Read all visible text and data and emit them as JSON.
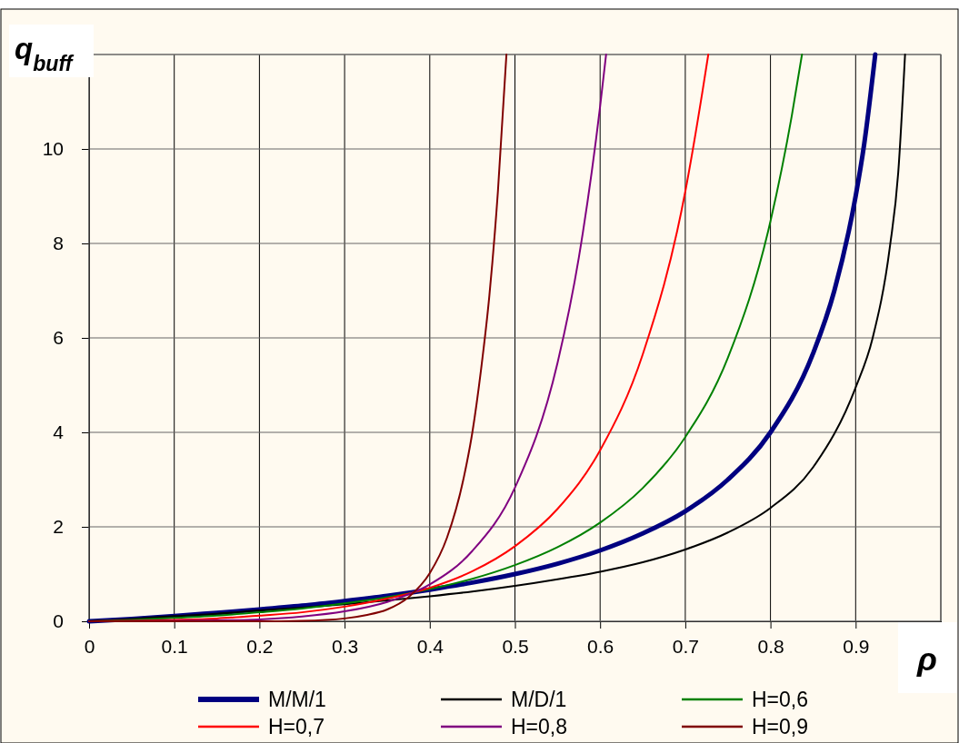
{
  "chart_data": {
    "type": "line",
    "xlabel": "ρ",
    "ylabel": "q$_{buff}$",
    "xlim": [
      0,
      1
    ],
    "ylim": [
      0,
      12
    ],
    "xticks": [
      0,
      0.1,
      0.2,
      0.3,
      0.4,
      0.5,
      0.6,
      0.7,
      0.8,
      0.9,
      {
        "value": 1,
        "label": null
      }
    ],
    "yticks": [
      0,
      2,
      4,
      6,
      8,
      10,
      {
        "value": 12,
        "label": null
      }
    ],
    "grid": true,
    "legend": "bottom",
    "marker": "none",
    "line_style": "solid",
    "series": [
      {
        "name": "M/M/1",
        "color": "#000080",
        "x": [
          0,
          0.05,
          0.1,
          0.15,
          0.2,
          0.25,
          0.3,
          0.35,
          0.4,
          0.45,
          0.5,
          0.55,
          0.6,
          0.65,
          0.7,
          0.75,
          0.8,
          0.85,
          0.875,
          0.9,
          0.91,
          0.923
        ],
        "values": [
          0,
          0.05,
          0.11,
          0.18,
          0.25,
          0.33,
          0.43,
          0.54,
          0.67,
          0.82,
          1,
          1.22,
          1.5,
          1.86,
          2.33,
          3,
          4,
          5.67,
          7,
          9,
          10.1,
          12
        ]
      },
      {
        "name": "M/D/1",
        "color": "#000000",
        "x": [
          0,
          0.05,
          0.1,
          0.15,
          0.2,
          0.25,
          0.3,
          0.35,
          0.4,
          0.45,
          0.5,
          0.55,
          0.6,
          0.65,
          0.7,
          0.75,
          0.8,
          0.85,
          0.9,
          0.92,
          0.94,
          0.95,
          0.958
        ],
        "values": [
          0,
          0.05,
          0.11,
          0.16,
          0.23,
          0.29,
          0.36,
          0.44,
          0.53,
          0.63,
          0.75,
          0.89,
          1.05,
          1.25,
          1.52,
          1.88,
          2.4,
          3.26,
          4.95,
          6,
          7.9,
          9.5,
          12
        ]
      },
      {
        "name": "H=0,6",
        "color": "#008000",
        "x": [
          0,
          0.05,
          0.1,
          0.15,
          0.2,
          0.25,
          0.3,
          0.35,
          0.4,
          0.45,
          0.5,
          0.55,
          0.6,
          0.65,
          0.7,
          0.75,
          0.8,
          0.825,
          0.837
        ],
        "values": [
          0,
          0.03,
          0.07,
          0.12,
          0.19,
          0.27,
          0.38,
          0.51,
          0.68,
          0.9,
          1.19,
          1.57,
          2.09,
          2.82,
          3.9,
          5.58,
          8.47,
          10.7,
          12
        ]
      },
      {
        "name": "H=0,7",
        "color": "#ff0000",
        "x": [
          0,
          0.05,
          0.1,
          0.15,
          0.2,
          0.25,
          0.3,
          0.35,
          0.4,
          0.45,
          0.5,
          0.55,
          0.6,
          0.65,
          0.7,
          0.72,
          0.727
        ],
        "values": [
          0,
          0.01,
          0.03,
          0.06,
          0.12,
          0.19,
          0.31,
          0.48,
          0.71,
          1.06,
          1.59,
          2.38,
          3.62,
          5.65,
          9.1,
          11.2,
          12
        ]
      },
      {
        "name": "H=0,8",
        "color": "#800080",
        "x": [
          0,
          0.1,
          0.15,
          0.2,
          0.25,
          0.3,
          0.35,
          0.4,
          0.45,
          0.5,
          0.55,
          0.575,
          0.6,
          0.607
        ],
        "values": [
          0,
          0.01,
          0.02,
          0.04,
          0.1,
          0.21,
          0.41,
          0.78,
          1.49,
          2.83,
          5.47,
          7.7,
          10.9,
          12
        ]
      },
      {
        "name": "H=0,9",
        "color": "#800000",
        "x": [
          0,
          0.1,
          0.2,
          0.25,
          0.3,
          0.325,
          0.35,
          0.375,
          0.4,
          0.42,
          0.44,
          0.45,
          0.46,
          0.47,
          0.48,
          0.49
        ],
        "values": [
          0,
          0,
          0,
          0.01,
          0.06,
          0.13,
          0.25,
          0.51,
          1.02,
          1.76,
          3.05,
          4,
          5.3,
          6.9,
          9.1,
          12
        ]
      }
    ]
  }
}
